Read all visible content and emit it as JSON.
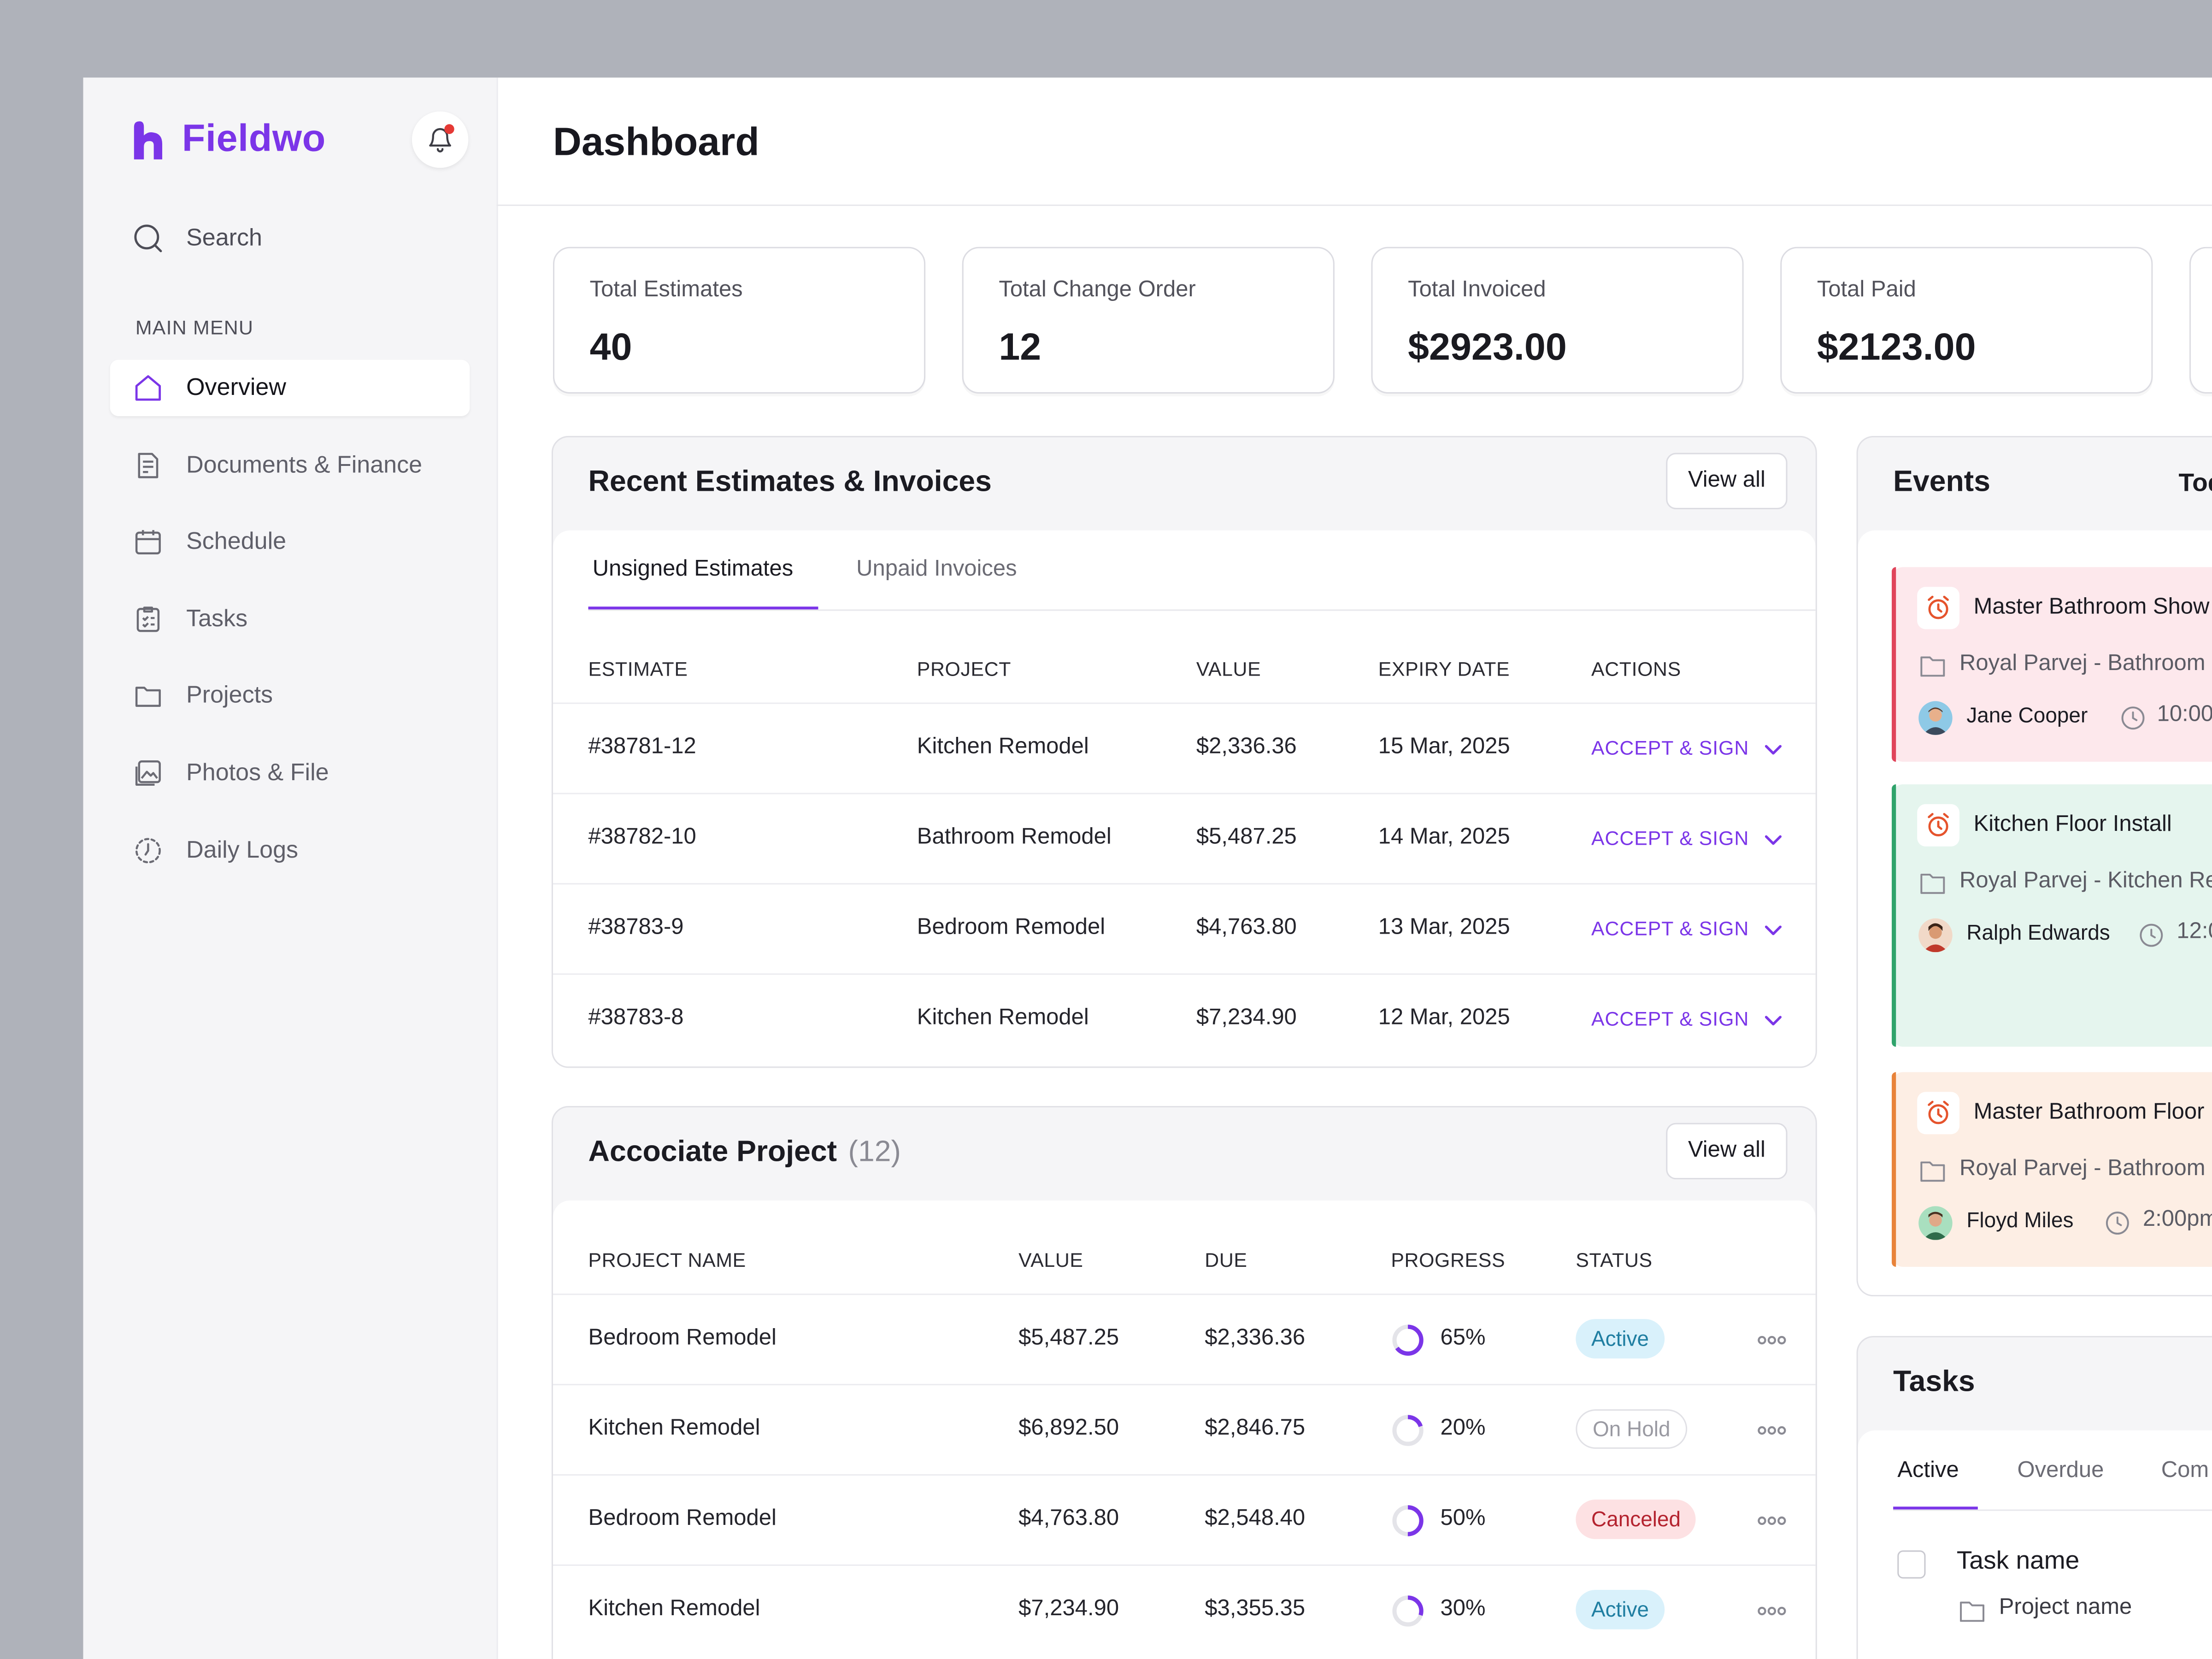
{
  "app": {
    "brand": "Fieldwo"
  },
  "sidebar": {
    "search_label": "Search",
    "menu_label": "MAIN MENU",
    "items": [
      {
        "label": "Overview",
        "icon": "home-icon",
        "active": true
      },
      {
        "label": "Documents & Finance",
        "icon": "document-icon"
      },
      {
        "label": "Schedule",
        "icon": "calendar-icon"
      },
      {
        "label": "Tasks",
        "icon": "clipboard-icon"
      },
      {
        "label": "Projects",
        "icon": "folder-icon"
      },
      {
        "label": "Photos & File",
        "icon": "image-icon"
      },
      {
        "label": "Daily Logs",
        "icon": "log-icon"
      }
    ]
  },
  "header": {
    "title": "Dashboard"
  },
  "stats": [
    {
      "label": "Total Estimates",
      "value": "40"
    },
    {
      "label": "Total Change Order",
      "value": "12"
    },
    {
      "label": "Total Invoiced",
      "value": "$2923.00"
    },
    {
      "label": "Total Paid",
      "value": "$2123.00"
    }
  ],
  "estimates": {
    "title": "Recent Estimates & Invoices",
    "view_all": "View all",
    "tabs": [
      "Unsigned Estimates",
      "Unpaid Invoices"
    ],
    "columns": [
      "ESTIMATE",
      "PROJECT",
      "VALUE",
      "EXPIRY DATE",
      "ACTIONS"
    ],
    "action_label": "ACCEPT & SIGN",
    "rows": [
      {
        "estimate": "#38781-12",
        "project": "Kitchen Remodel",
        "value": "$2,336.36",
        "expiry": "15 Mar, 2025"
      },
      {
        "estimate": "#38782-10",
        "project": "Bathroom Remodel",
        "value": "$5,487.25",
        "expiry": "14 Mar, 2025"
      },
      {
        "estimate": "#38783-9",
        "project": "Bedroom Remodel",
        "value": "$4,763.80",
        "expiry": "13 Mar, 2025"
      },
      {
        "estimate": "#38783-8",
        "project": "Kitchen Remodel",
        "value": "$7,234.90",
        "expiry": "12 Mar, 2025"
      }
    ]
  },
  "projects": {
    "title": "Accociate Project",
    "count": "(12)",
    "view_all": "View all",
    "columns": [
      "PROJECT NAME",
      "VALUE",
      "DUE",
      "PROGRESS",
      "STATUS"
    ],
    "rows": [
      {
        "name": "Bedroom Remodel",
        "value": "$5,487.25",
        "due": "$2,336.36",
        "progress": 65,
        "progress_label": "65%",
        "status": "Active"
      },
      {
        "name": "Kitchen Remodel",
        "value": "$6,892.50",
        "due": "$2,846.75",
        "progress": 20,
        "progress_label": "20%",
        "status": "On Hold"
      },
      {
        "name": "Bedroom Remodel",
        "value": "$4,763.80",
        "due": "$2,548.40",
        "progress": 50,
        "progress_label": "50%",
        "status": "Canceled"
      },
      {
        "name": "Kitchen Remodel",
        "value": "$7,234.90",
        "due": "$3,355.35",
        "progress": 30,
        "progress_label": "30%",
        "status": "Active"
      }
    ]
  },
  "events": {
    "title": "Events",
    "filter": "Today",
    "items": [
      {
        "title": "Master Bathroom Show",
        "project": "Royal Parvej - Bathroom I",
        "person": "Jane Cooper",
        "time": "10:00",
        "accent": "#e0445a",
        "bg": "#fde8ec"
      },
      {
        "title": "Kitchen Floor Install",
        "project": "Royal Parvej - Kitchen Re",
        "person": "Ralph Edwards",
        "time": "12:0",
        "accent": "#2fa36b",
        "bg": "#e5f5ee"
      },
      {
        "title": "Master Bathroom Floor",
        "project": "Royal Parvej - Bathroom I",
        "person": "Floyd Miles",
        "time": "2:00pm",
        "accent": "#e8833a",
        "bg": "#fdeee4"
      }
    ]
  },
  "tasks": {
    "title": "Tasks",
    "tabs": [
      "Active",
      "Overdue",
      "Com"
    ],
    "item": {
      "name": "Task name",
      "project": "Project name"
    }
  }
}
